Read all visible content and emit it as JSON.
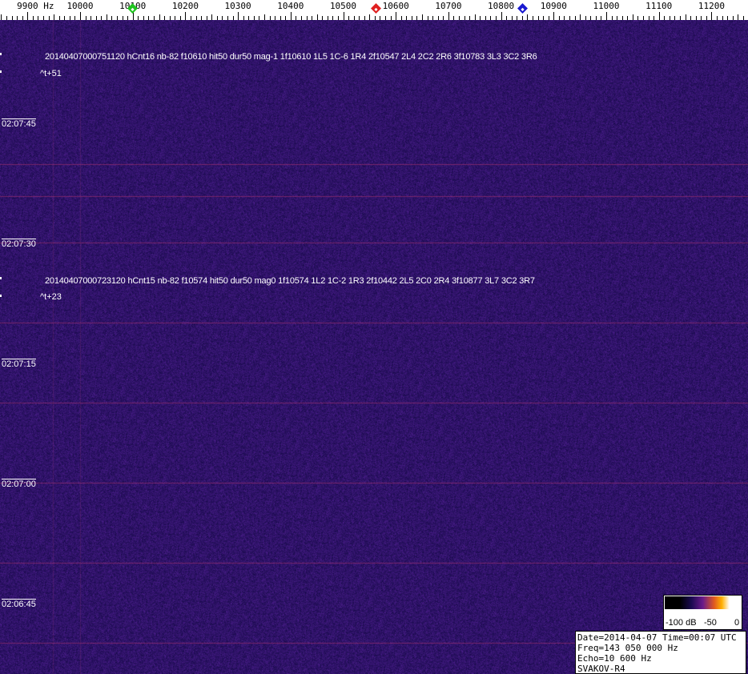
{
  "frequency_axis": {
    "unit": "Hz",
    "labels": [
      "9900",
      "10000",
      "10100",
      "10200",
      "10300",
      "10400",
      "10500",
      "10600",
      "10700",
      "10800",
      "10900",
      "11000",
      "11100",
      "11200"
    ],
    "markers": [
      {
        "name": "green",
        "freq_hz": 10100,
        "color": "#1fc41f"
      },
      {
        "name": "red",
        "freq_hz": 10563,
        "color": "#e02020"
      },
      {
        "name": "blue",
        "freq_hz": 10842,
        "color": "#1a1ad0"
      }
    ]
  },
  "time_labels": [
    "02:07:45",
    "02:07:30",
    "02:07:15",
    "02:07:00",
    "02:06:45"
  ],
  "detections": [
    {
      "text": "20140407000751120 hCnt16 nb-82 f10610 hit50 dur50 mag-1 1f10610 1L5 1C-6 1R4 2f10547 2L4 2C2 2R6 3f10783 3L3 3C2 3R6",
      "offset": "^t+51"
    },
    {
      "text": "20140407000723120 hCnt15 nb-82 f10574 hit50 dur50 mag0 1f10574 1L2 1C-2 1R3 2f10442 2L5 2C0 2R4 3f10877 3L7 3C2 3R7",
      "offset": "^t+23"
    }
  ],
  "color_scale": {
    "labels": [
      "-100 dB",
      "-50",
      "0"
    ]
  },
  "info": {
    "line1": "Date=2014-04-07 Time=00:07 UTC",
    "line2": "Freq=143 050 000 Hz",
    "line3": "Echo=10 600 Hz",
    "line4": "SVAKOV-R4"
  },
  "colors": {
    "background": "#2a1a6a",
    "line": "#a03070"
  }
}
